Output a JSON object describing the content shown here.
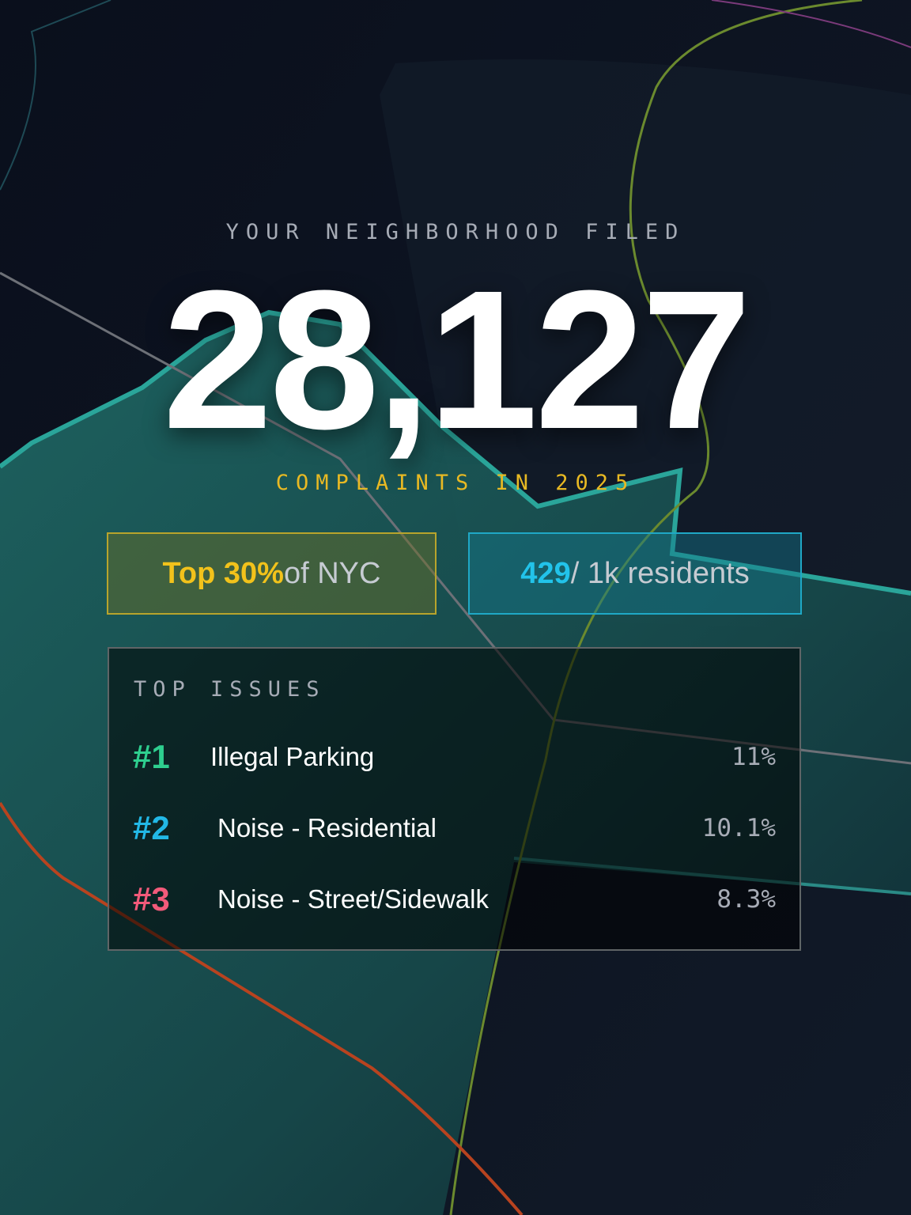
{
  "header": {
    "kicker": "YOUR NEIGHBORHOOD FILED",
    "total": "28,127",
    "caption": "COMPLAINTS IN 2025"
  },
  "badges": [
    {
      "highlight": "Top 30%",
      "text": "of NYC"
    },
    {
      "highlight": "429",
      "text": "/ 1k residents"
    }
  ],
  "top_issues": {
    "title": "TOP ISSUES",
    "items": [
      {
        "rank": "#1",
        "name": "Illegal Parking",
        "share": "11%"
      },
      {
        "rank": "#2",
        "name": "Noise - Residential",
        "share": "10.1%"
      },
      {
        "rank": "#3",
        "name": "Noise - Street/Sidewalk",
        "share": "8.3%"
      }
    ]
  }
}
